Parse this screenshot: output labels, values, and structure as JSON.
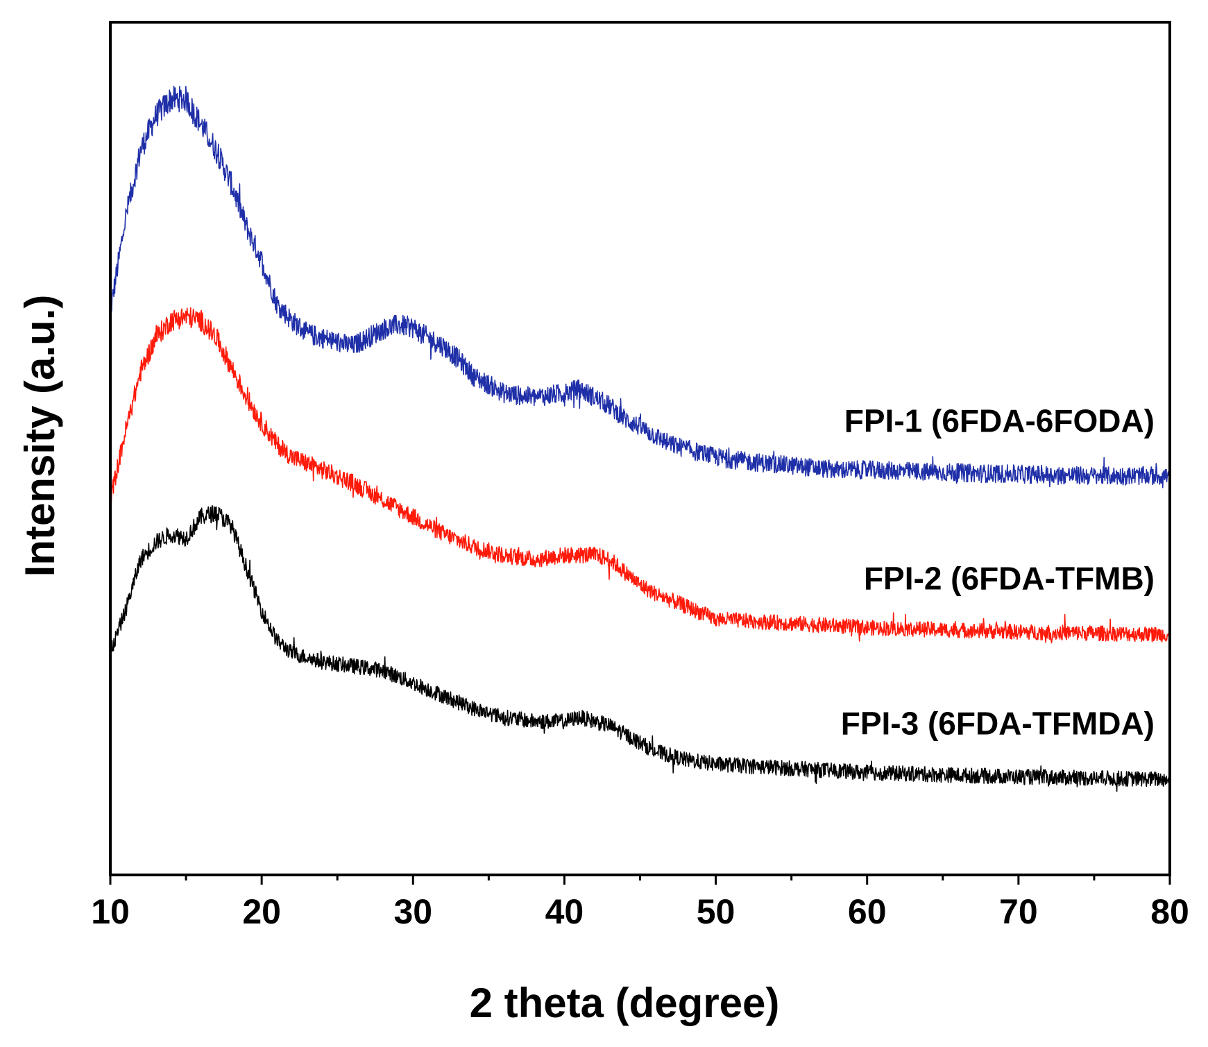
{
  "chart_data": {
    "type": "line",
    "title": "",
    "xlabel": "2 theta (degree)",
    "ylabel": "Intensity (a.u.)",
    "xlim": [
      10,
      80
    ],
    "ylim": [
      0,
      10
    ],
    "xticks": [
      10,
      20,
      30,
      40,
      50,
      60,
      70,
      80
    ],
    "xtick_labels": [
      "10",
      "20",
      "30",
      "40",
      "50",
      "60",
      "70",
      "80"
    ],
    "y_tick_labels_shown": false,
    "grid": false,
    "series": [
      {
        "name": "FPI-1 (6FDA-6FODA)",
        "color": "#1f2fa8",
        "x": [
          10,
          11,
          12,
          13,
          14,
          15,
          16,
          17,
          18,
          19,
          20,
          21,
          22,
          23,
          24,
          25,
          26,
          27,
          28,
          29,
          30,
          31,
          32,
          33,
          34,
          35,
          36,
          38,
          40,
          41,
          42,
          43,
          44,
          45,
          46,
          47,
          48,
          50,
          52,
          55,
          58,
          60,
          65,
          70,
          75,
          80
        ],
        "y": [
          6.6,
          7.7,
          8.5,
          8.9,
          9.1,
          9.1,
          8.8,
          8.5,
          8.1,
          7.6,
          7.2,
          6.7,
          6.5,
          6.35,
          6.3,
          6.25,
          6.2,
          6.3,
          6.4,
          6.45,
          6.42,
          6.3,
          6.2,
          6.05,
          5.85,
          5.75,
          5.65,
          5.6,
          5.65,
          5.7,
          5.6,
          5.5,
          5.35,
          5.25,
          5.15,
          5.05,
          5.0,
          4.9,
          4.85,
          4.8,
          4.75,
          4.75,
          4.72,
          4.7,
          4.68,
          4.68
        ]
      },
      {
        "name": "FPI-2 (6FDA-TFMB)",
        "color": "#ff1a0a",
        "x": [
          10,
          11,
          12,
          13,
          14,
          15,
          16,
          17,
          18,
          19,
          20,
          21,
          22,
          24,
          26,
          28,
          30,
          32,
          34,
          36,
          38,
          40,
          42,
          43,
          44,
          45,
          46,
          48,
          50,
          55,
          60,
          70,
          80
        ],
        "y": [
          4.4,
          5.2,
          5.9,
          6.3,
          6.5,
          6.55,
          6.5,
          6.3,
          5.95,
          5.6,
          5.3,
          5.05,
          4.9,
          4.75,
          4.6,
          4.4,
          4.2,
          4.0,
          3.85,
          3.75,
          3.7,
          3.75,
          3.75,
          3.7,
          3.55,
          3.4,
          3.3,
          3.15,
          3.0,
          2.95,
          2.9,
          2.85,
          2.82
        ]
      },
      {
        "name": "FPI-3 (6FDA-TFMDA)",
        "color": "#000000",
        "x": [
          10,
          11,
          12,
          13,
          14,
          15,
          16,
          17,
          18,
          19,
          20,
          21,
          22,
          24,
          26,
          28,
          30,
          32,
          34,
          36,
          38,
          40,
          41,
          42,
          43,
          44,
          45,
          46,
          48,
          50,
          55,
          60,
          70,
          80
        ],
        "y": [
          2.6,
          3.1,
          3.7,
          3.9,
          4.0,
          3.95,
          4.2,
          4.25,
          4.1,
          3.6,
          3.1,
          2.75,
          2.6,
          2.5,
          2.45,
          2.4,
          2.25,
          2.1,
          1.95,
          1.85,
          1.8,
          1.8,
          1.85,
          1.8,
          1.75,
          1.65,
          1.55,
          1.45,
          1.35,
          1.3,
          1.25,
          1.2,
          1.15,
          1.12
        ]
      }
    ],
    "legend": "series labels placed inline to the right of each curve"
  }
}
